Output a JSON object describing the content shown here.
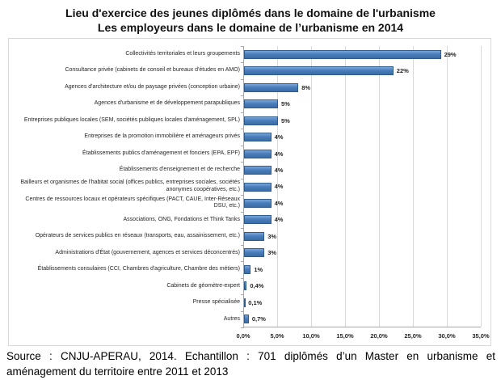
{
  "title": {
    "line1": "Lieu d'exercice des jeunes diplômés dans le domaine de l'urbanisme",
    "line2": "Les employeurs dans le domaine de l’urbanisme en 2014"
  },
  "footer": {
    "text": "Source : CNJU-APERAU, 2014. Echantillon : 701 diplômés d’un Master en urbanisme et aménagement du territoire entre 2011 et 2013"
  },
  "chart_data": {
    "type": "bar",
    "orientation": "horizontal",
    "title": "Lieu d'exercice des jeunes diplômés dans le domaine de l'urbanisme",
    "subtitle": "Les employeurs dans le domaine de l’urbanisme en 2014",
    "categories": [
      "Collectivités territoriales et leurs groupements",
      "Consultance privée (cabinets de conseil et bureaux d'études en AMO)",
      "Agences d'architecture et/ou de paysage privées (conception urbaine)",
      "Agences d'urbanisme et de développement parapubliques",
      "Entreprises publiques locales (SEM, sociétés publiques locales d'aménagement, SPL)",
      "Entreprises de la promotion immobilière et aménageurs privés",
      "Établissements publics d'aménagement et fonciers (EPA, EPF)",
      "Établissements d'enseignement et de recherche",
      "Bailleurs et organismes de l'habitat social (offices publics, entreprises sociales, sociétés anonymes coopératives, etc.)",
      "Centres de ressources locaux et opérateurs spécifiques (PACT, CAUE, Inter-Réseaux DSU, etc.)",
      "Associations, ONG, Fondations et Think Tanks",
      "Opérateurs de services publics en réseaux (transports, eau, assainissement, etc.)",
      "Administrations d'État (gouvernement, agences et services déconcentrés)",
      "Établissements consulaires (CCI, Chambres d'agriculture, Chambre des métiers)",
      "Cabinets de géomètre-expert",
      "Presse spécialisée",
      "Autres"
    ],
    "values": [
      29,
      22,
      8,
      5,
      5,
      4,
      4,
      4,
      4,
      4,
      4,
      3,
      3,
      1,
      0.4,
      0.1,
      0.7
    ],
    "value_labels": [
      "29%",
      "22%",
      "8%",
      "5%",
      "5%",
      "4%",
      "4%",
      "4%",
      "4%",
      "4%",
      "4%",
      "3%",
      "3%",
      "1%",
      "0,4%",
      "0,1%",
      "0,7%"
    ],
    "x_ticks": [
      "0,0%",
      "5,0%",
      "10,0%",
      "15,0%",
      "20,0%",
      "25,0%",
      "30,0%",
      "35,0%"
    ],
    "xlim": [
      0,
      35
    ],
    "grid": true,
    "legend": false,
    "bar_fill": "#4A7EBB",
    "bar_fill_light": "#79A6DB",
    "bar_fill_dark": "#3A6BA3",
    "bar_border": "#2F5B8D",
    "gridline_color": "#D9D9D9",
    "axis_color": "#A8A8A8"
  }
}
